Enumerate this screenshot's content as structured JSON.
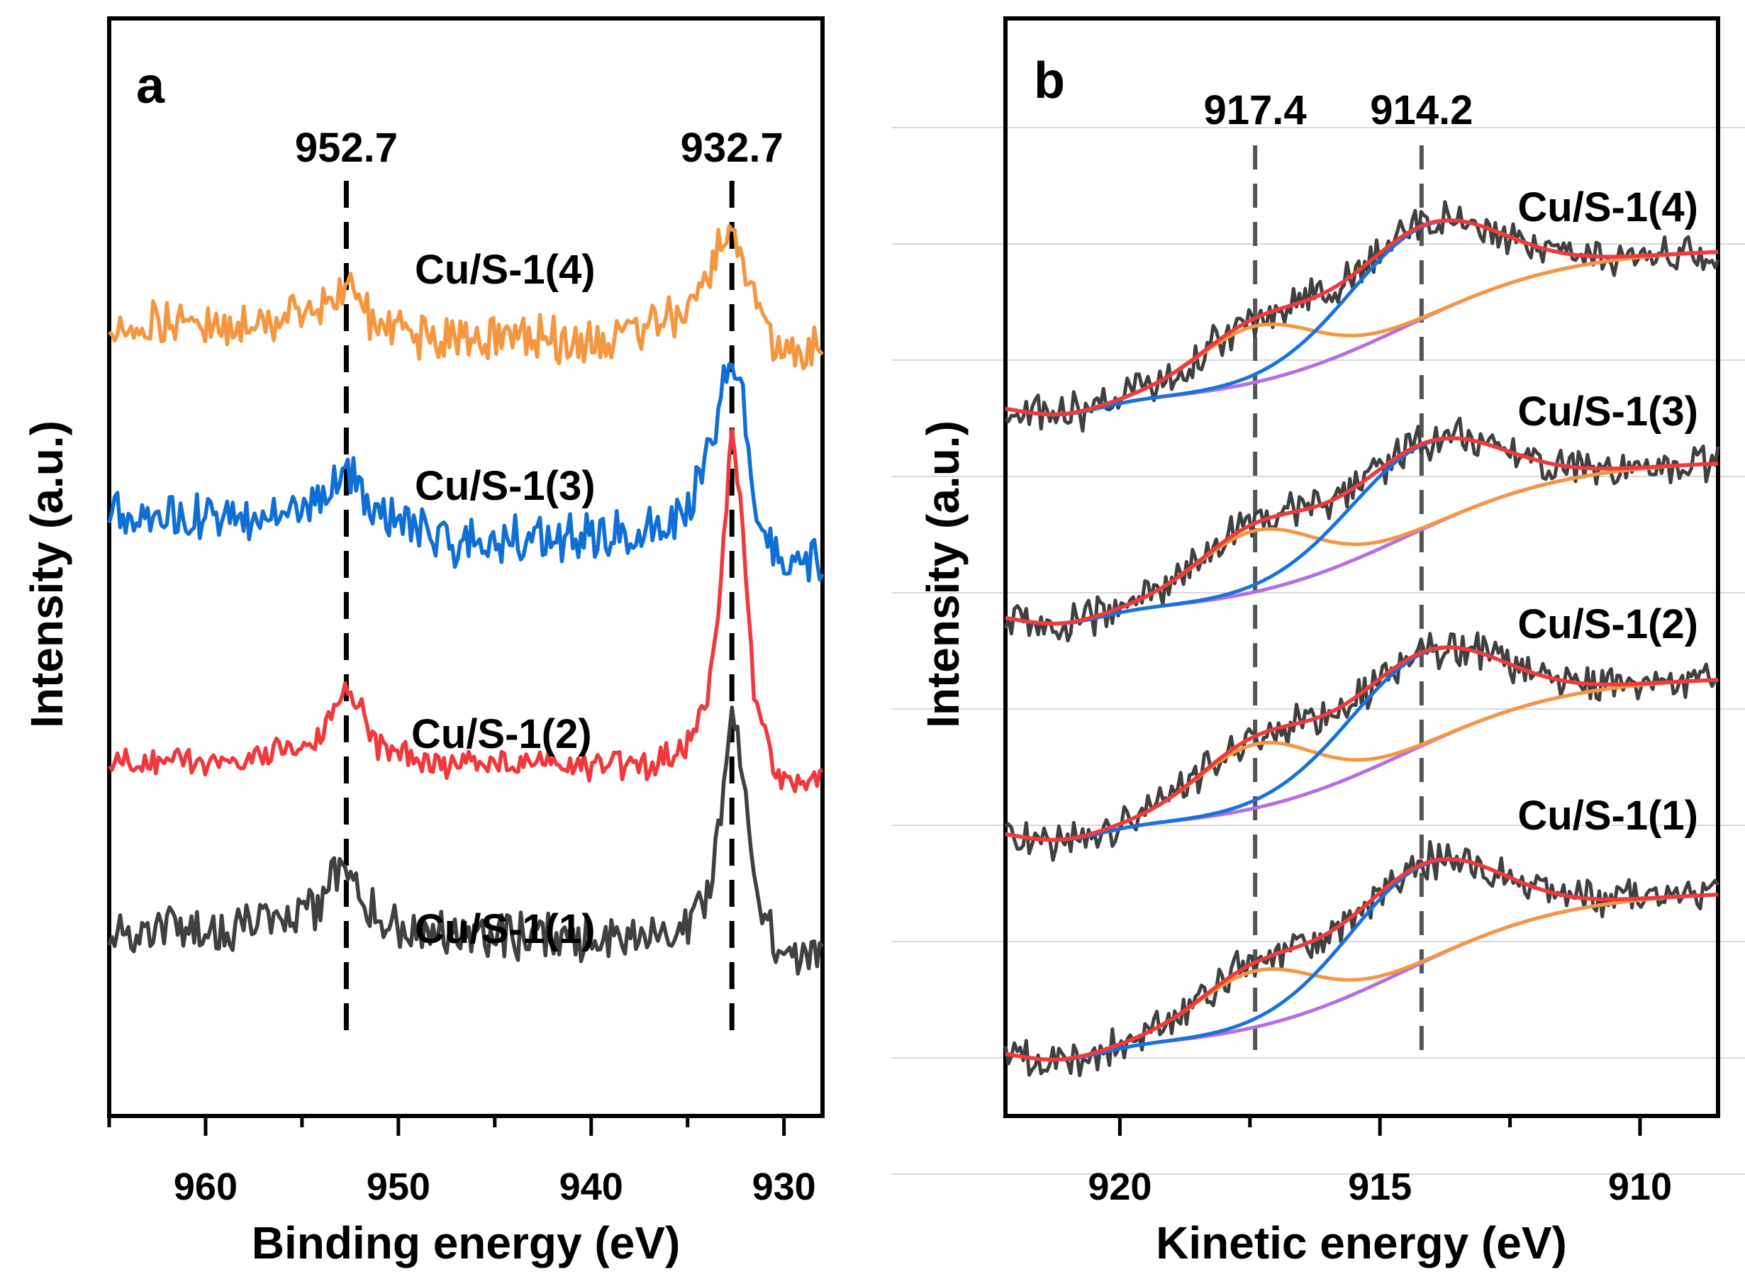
{
  "colors": {
    "sample1": "#404040",
    "sample2": "#f0393c",
    "sample3": "#0f6fd6",
    "sample4": "#f59640",
    "fit_envelope": "#ef3b3b",
    "fit_cu_plus": "#f59640",
    "fit_cu0": "#1972dc",
    "fit_background": "#b56ee3"
  },
  "chart_data": [
    {
      "type": "line",
      "panel": "a",
      "xlabel": "Binding energy (eV)",
      "ylabel": "Intensity (a.u.)",
      "xlim": [
        965,
        928
      ],
      "xticks": [
        960,
        950,
        940,
        930
      ],
      "x_axis_reversed": true,
      "reference_lines": [
        {
          "x": 952.7,
          "label": "952.7"
        },
        {
          "x": 932.7,
          "label": "932.7"
        }
      ],
      "series": [
        {
          "name": "Cu/S-1(1)",
          "color_key": "sample1",
          "x": [
            965,
            962,
            958,
            955,
            954,
            953.3,
            952.7,
            952.0,
            951,
            948,
            945,
            942,
            939,
            937,
            935,
            934,
            933.5,
            933,
            932.7,
            932.2,
            931.5,
            930.5,
            929.5,
            928
          ],
          "y": [
            0.14,
            0.15,
            0.16,
            0.2,
            0.26,
            0.34,
            0.4,
            0.32,
            0.2,
            0.13,
            0.14,
            0.12,
            0.11,
            0.12,
            0.17,
            0.28,
            0.45,
            0.8,
            0.95,
            0.78,
            0.35,
            0.1,
            0.06,
            0.05
          ]
        },
        {
          "name": "Cu/S-1(2)",
          "color_key": "sample2",
          "x": [
            965,
            962,
            958,
            955,
            954,
            953.3,
            952.7,
            952.0,
            951,
            948,
            945,
            942,
            939,
            937,
            935,
            934,
            933.5,
            933,
            932.7,
            932.2,
            931.5,
            930.5,
            929.5,
            928
          ],
          "y": [
            0.1,
            0.1,
            0.1,
            0.14,
            0.2,
            0.32,
            0.4,
            0.3,
            0.14,
            0.08,
            0.1,
            0.08,
            0.08,
            0.09,
            0.16,
            0.32,
            0.55,
            1.05,
            1.3,
            1.0,
            0.3,
            0.05,
            0.0,
            0.02
          ]
        },
        {
          "name": "Cu/S-1(3)",
          "color_key": "sample3",
          "x": [
            965,
            962,
            958,
            955,
            954,
            953.3,
            952.7,
            952.0,
            951,
            948,
            945,
            942,
            939,
            937,
            935,
            934,
            933.5,
            933,
            932.7,
            932.2,
            931.5,
            930.5,
            929.5,
            928
          ],
          "y": [
            0.2,
            0.19,
            0.18,
            0.24,
            0.3,
            0.33,
            0.34,
            0.3,
            0.2,
            0.1,
            0.09,
            0.1,
            0.11,
            0.13,
            0.22,
            0.4,
            0.58,
            0.74,
            0.8,
            0.65,
            0.25,
            0.04,
            0.01,
            0.03
          ]
        },
        {
          "name": "Cu/S-1(4)",
          "color_key": "sample4",
          "x": [
            965,
            962,
            958,
            955,
            954,
            953.3,
            952.7,
            952.0,
            951,
            948,
            945,
            942,
            939,
            937,
            935,
            934,
            933.5,
            933,
            932.7,
            932.2,
            931.5,
            930.5,
            929.5,
            928
          ],
          "y": [
            0.1,
            0.1,
            0.1,
            0.14,
            0.18,
            0.21,
            0.22,
            0.18,
            0.08,
            0.04,
            0.05,
            0.04,
            0.04,
            0.08,
            0.15,
            0.28,
            0.36,
            0.44,
            0.48,
            0.38,
            0.15,
            0.02,
            0.0,
            0.01
          ]
        }
      ],
      "sample_labels": [
        "Cu/S-1(4)",
        "Cu/S-1(3)",
        "Cu/S-1(2)",
        "Cu/S-1(1)"
      ]
    },
    {
      "type": "line",
      "panel": "b",
      "xlabel": "Kinetic energy (eV)",
      "ylabel": "Intensity (a.u.)",
      "xlim": [
        922.2,
        908.5
      ],
      "xticks": [
        920,
        915,
        910
      ],
      "x_axis_reversed": true,
      "reference_lines": [
        {
          "x": 917.4,
          "label": "917.4"
        },
        {
          "x": 914.2,
          "label": "914.2"
        }
      ],
      "fit_components": {
        "cu_plus_peak_eV": 917.4,
        "cu0_peak_eV": 914.2,
        "background_start_eV": 921,
        "background_end_eV": 908.5
      },
      "series": [
        {
          "name": "Cu/S-1(1)",
          "color_key": "sample1",
          "amplitude_cu0": 0.38,
          "amplitude_cu_plus": 0.22,
          "background_rise": 0.62
        },
        {
          "name": "Cu/S-1(2)",
          "color_key": "sample1",
          "amplitude_cu0": 0.36,
          "amplitude_cu_plus": 0.25,
          "background_rise": 0.6
        },
        {
          "name": "Cu/S-1(3)",
          "color_key": "sample1",
          "amplitude_cu0": 0.33,
          "amplitude_cu_plus": 0.24,
          "background_rise": 0.6
        },
        {
          "name": "Cu/S-1(4)",
          "color_key": "sample1",
          "amplitude_cu0": 0.36,
          "amplitude_cu_plus": 0.22,
          "background_rise": 0.61
        }
      ],
      "sample_labels": [
        "Cu/S-1(4)",
        "Cu/S-1(3)",
        "Cu/S-1(2)",
        "Cu/S-1(1)"
      ]
    }
  ],
  "panels": {
    "a": {
      "letter": "a"
    },
    "b": {
      "letter": "b"
    }
  }
}
